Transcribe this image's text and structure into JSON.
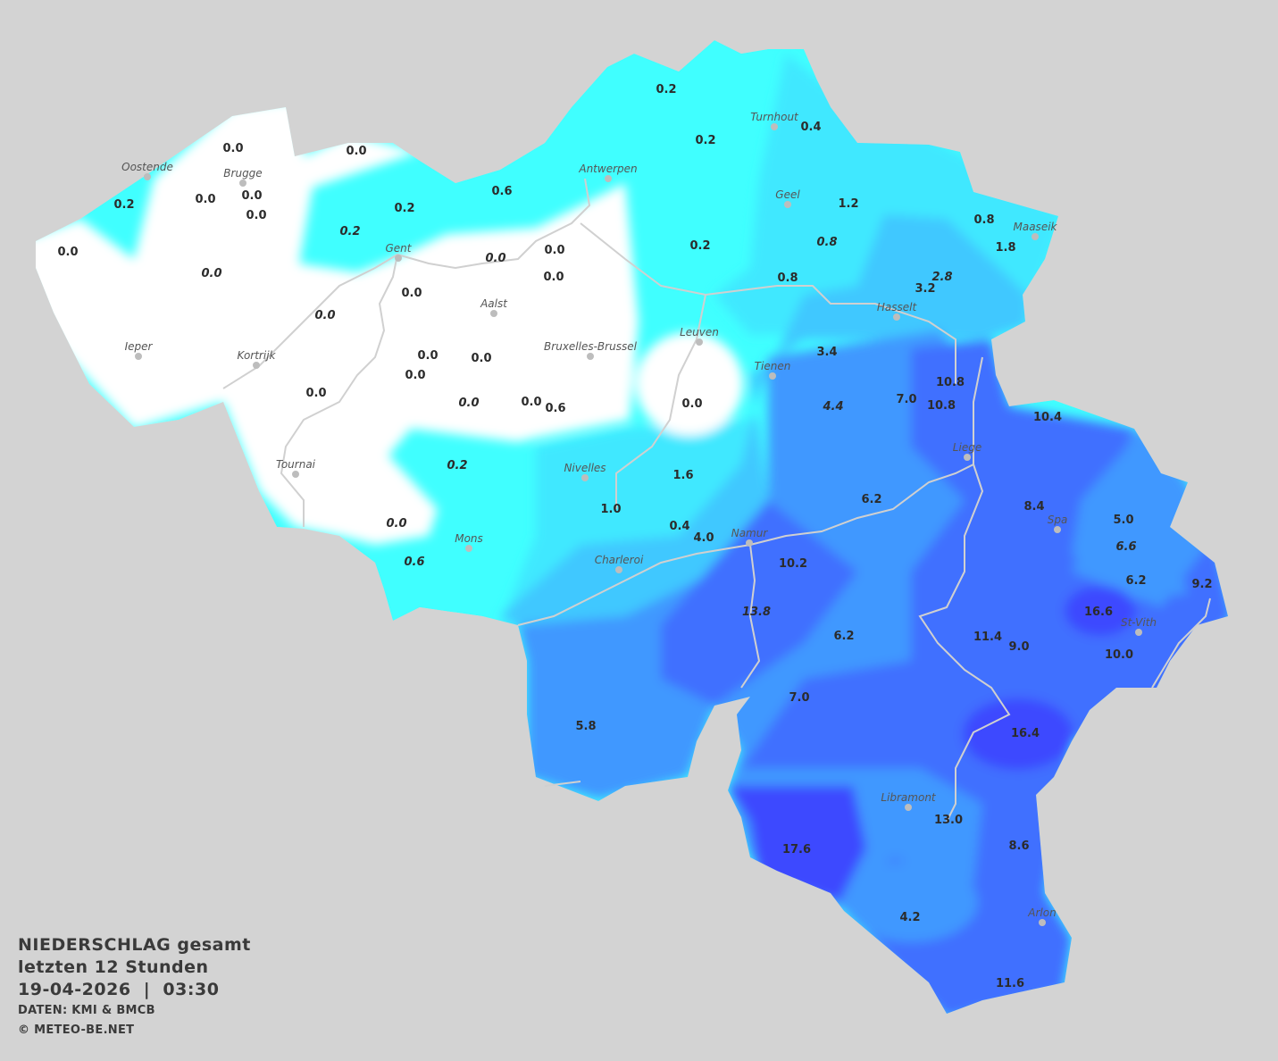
{
  "caption": {
    "title": "NIEDERSCHLAG gesamt",
    "period": "letzten 12 Stunden",
    "datetime": "19-04-2026  |  03:30",
    "source": "DATEN: KMI & BMCB",
    "copyright": "© METEO-BE.NET"
  },
  "colors": {
    "background": "#d3d3d3",
    "zero": "#ffffff",
    "class1": "#40ffff",
    "class2": "#40e8ff",
    "class3": "#40c8ff",
    "class4": "#3f98ff",
    "class5": "#3f70ff",
    "class6": "#3d48ff",
    "rivers": "#d0d0d0"
  },
  "cities": [
    "Oostende",
    "Brugge",
    "Gent",
    "Antwerpen",
    "Turnhout",
    "Geel",
    "Maaseik",
    "Hasselt",
    "Aalst",
    "Ieper",
    "Kortrijk",
    "Bruxelles-Brussel",
    "Leuven",
    "Tienen",
    "Tournai",
    "Nivelles",
    "Liege",
    "Mons",
    "Namur",
    "Charleroi",
    "Spa",
    "St-Vith",
    "Libramont",
    "Arlon"
  ],
  "values": [
    {
      "v": "0.0"
    },
    {
      "v": "0.0"
    },
    {
      "v": "0.2"
    },
    {
      "v": "0.0"
    },
    {
      "v": "0.0"
    },
    {
      "v": "0.0"
    },
    {
      "v": "0.0"
    },
    {
      "v": "0.0",
      "i": true
    },
    {
      "v": "0.2",
      "i": true
    },
    {
      "v": "0.2"
    },
    {
      "v": "0.6"
    },
    {
      "v": "0.2"
    },
    {
      "v": "0.2"
    },
    {
      "v": "0.4"
    },
    {
      "v": "0.0",
      "i": true
    },
    {
      "v": "0.0"
    },
    {
      "v": "0.0"
    },
    {
      "v": "0.0"
    },
    {
      "v": "0.0",
      "i": true
    },
    {
      "v": "0.0"
    },
    {
      "v": "0.0"
    },
    {
      "v": "0.0"
    },
    {
      "v": "0.0"
    },
    {
      "v": "0.0",
      "i": true
    },
    {
      "v": "0.0"
    },
    {
      "v": "0.6"
    },
    {
      "v": "0.0"
    },
    {
      "v": "1.2"
    },
    {
      "v": "0.8",
      "i": true
    },
    {
      "v": "0.2"
    },
    {
      "v": "0.8"
    },
    {
      "v": "0.8"
    },
    {
      "v": "1.8"
    },
    {
      "v": "2.8",
      "i": true
    },
    {
      "v": "3.2"
    },
    {
      "v": "3.4"
    },
    {
      "v": "4.4",
      "i": true
    },
    {
      "v": "7.0"
    },
    {
      "v": "10.8"
    },
    {
      "v": "10.8"
    },
    {
      "v": "0.2",
      "i": true
    },
    {
      "v": "0.0",
      "i": true
    },
    {
      "v": "0.6",
      "i": true
    },
    {
      "v": "1.6"
    },
    {
      "v": "1.0"
    },
    {
      "v": "0.4"
    },
    {
      "v": "4.0"
    },
    {
      "v": "6.2"
    },
    {
      "v": "10.4"
    },
    {
      "v": "8.4"
    },
    {
      "v": "5.0"
    },
    {
      "v": "6.6",
      "i": true
    },
    {
      "v": "6.2"
    },
    {
      "v": "9.2"
    },
    {
      "v": "16.6"
    },
    {
      "v": "10.0"
    },
    {
      "v": "11.4"
    },
    {
      "v": "9.0"
    },
    {
      "v": "10.2"
    },
    {
      "v": "13.8",
      "i": true
    },
    {
      "v": "6.2"
    },
    {
      "v": "7.0"
    },
    {
      "v": "5.8"
    },
    {
      "v": "16.4"
    },
    {
      "v": "13.0"
    },
    {
      "v": "17.6"
    },
    {
      "v": "8.6"
    },
    {
      "v": "4.2"
    },
    {
      "v": "11.6"
    }
  ]
}
